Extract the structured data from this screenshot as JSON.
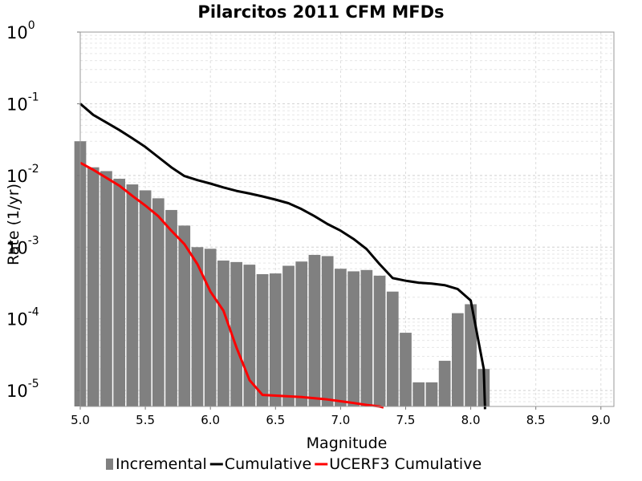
{
  "chart_data": {
    "type": "bar",
    "title": "Pilarcitos 2011 CFM MFDs",
    "xlabel": "Magnitude",
    "ylabel": "Rate (1/yr)",
    "xlim": [
      5.0,
      9.1
    ],
    "ylim": [
      6e-06,
      1.0
    ],
    "yscale": "log",
    "grid": true,
    "legend_position": "bottom",
    "x_ticks": [
      "5.0",
      "5.5",
      "6.0",
      "6.5",
      "7.0",
      "7.5",
      "8.0",
      "8.5",
      "9.0"
    ],
    "y_ticks": [
      {
        "base": "10",
        "exp": "0"
      },
      {
        "base": "10",
        "exp": "-1"
      },
      {
        "base": "10",
        "exp": "-2"
      },
      {
        "base": "10",
        "exp": "-3"
      },
      {
        "base": "10",
        "exp": "-4"
      },
      {
        "base": "10",
        "exp": "-5"
      }
    ],
    "series": [
      {
        "name": "Incremental",
        "kind": "bar",
        "color": "#808080",
        "x": [
          5.0,
          5.1,
          5.2,
          5.3,
          5.4,
          5.5,
          5.6,
          5.7,
          5.8,
          5.9,
          6.0,
          6.1,
          6.2,
          6.3,
          6.4,
          6.5,
          6.6,
          6.7,
          6.8,
          6.9,
          7.0,
          7.1,
          7.2,
          7.3,
          7.4,
          7.5,
          7.6,
          7.7,
          7.8,
          7.9,
          8.0,
          8.1
        ],
        "values": [
          0.03,
          0.013,
          0.0115,
          0.009,
          0.0075,
          0.0062,
          0.0048,
          0.0033,
          0.002,
          0.001,
          0.00095,
          0.00065,
          0.00062,
          0.00057,
          0.00042,
          0.00043,
          0.00055,
          0.00063,
          0.00078,
          0.00075,
          0.0005,
          0.00046,
          0.00048,
          0.0004,
          0.00024,
          6.4e-05,
          1.3e-05,
          1.3e-05,
          2.6e-05,
          0.00012,
          0.00016,
          2e-05
        ]
      },
      {
        "name": "Cumulative",
        "kind": "line",
        "color": "#000000",
        "x": [
          5.0,
          5.1,
          5.2,
          5.3,
          5.4,
          5.5,
          5.6,
          5.7,
          5.8,
          5.9,
          6.0,
          6.1,
          6.2,
          6.3,
          6.4,
          6.5,
          6.6,
          6.7,
          6.8,
          6.9,
          7.0,
          7.1,
          7.2,
          7.3,
          7.4,
          7.5,
          7.6,
          7.7,
          7.8,
          7.9,
          8.0,
          8.1,
          8.11
        ],
        "values": [
          0.1,
          0.07,
          0.055,
          0.043,
          0.033,
          0.025,
          0.018,
          0.013,
          0.0098,
          0.0086,
          0.0077,
          0.0068,
          0.0061,
          0.0056,
          0.0051,
          0.0046,
          0.0041,
          0.0034,
          0.0027,
          0.0021,
          0.0017,
          0.0013,
          0.00094,
          0.00058,
          0.00037,
          0.00034,
          0.00032,
          0.00031,
          0.000295,
          0.00026,
          0.00018,
          2e-05,
          5.5e-06
        ]
      },
      {
        "name": "UCERF3 Cumulative",
        "kind": "line",
        "color": "#ff0000",
        "x": [
          5.0,
          5.1,
          5.2,
          5.3,
          5.4,
          5.5,
          5.6,
          5.7,
          5.8,
          5.9,
          6.0,
          6.1,
          6.2,
          6.3,
          6.4,
          6.5,
          6.6,
          6.7,
          6.8,
          6.9,
          7.0,
          7.1,
          7.2,
          7.3,
          7.33
        ],
        "values": [
          0.015,
          0.012,
          0.0093,
          0.0072,
          0.0052,
          0.0038,
          0.0027,
          0.0017,
          0.0011,
          0.00058,
          0.00024,
          0.00013,
          4e-05,
          1.4e-05,
          8.7e-06,
          8.5e-06,
          8.3e-06,
          8.1e-06,
          7.8e-06,
          7.5e-06,
          7.1e-06,
          6.7e-06,
          6.3e-06,
          6e-06,
          5.8e-06
        ]
      }
    ]
  }
}
